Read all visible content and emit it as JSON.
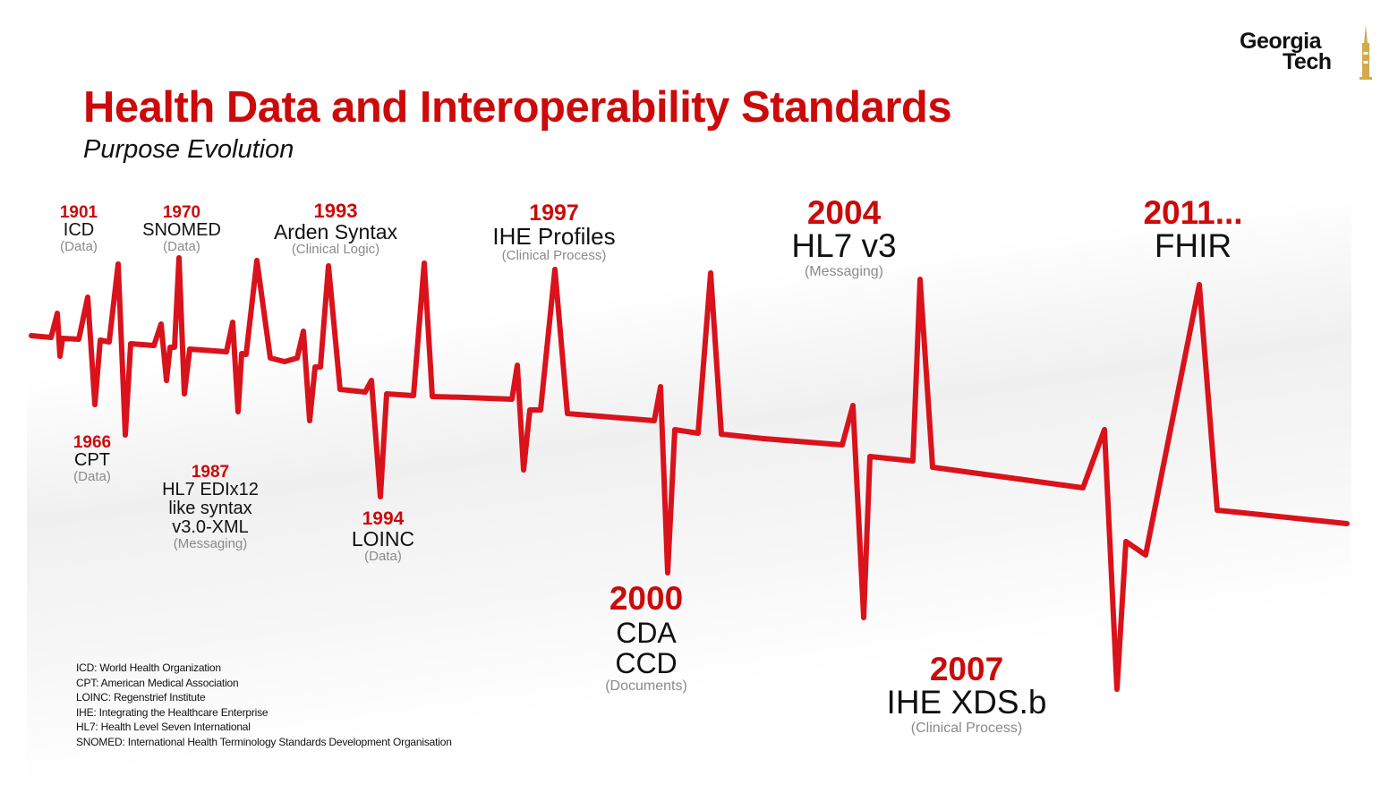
{
  "header": {
    "title": "Health Data and Interoperability Standards",
    "subtitle": "Purpose Evolution"
  },
  "logo": {
    "line1": "Georgia",
    "line2": "Tech"
  },
  "events": [
    {
      "year": "1901",
      "name": "ICD",
      "type": "(Data)"
    },
    {
      "year": "1966",
      "name": "CPT",
      "type": "(Data)"
    },
    {
      "year": "1970",
      "name": "SNOMED",
      "type": "(Data)"
    },
    {
      "year": "1987",
      "name_lines": [
        "HL7 EDIx12",
        "like syntax",
        "v3.0-XML"
      ],
      "type": "(Messaging)"
    },
    {
      "year": "1993",
      "name": "Arden Syntax",
      "type": "(Clinical Logic)"
    },
    {
      "year": "1994",
      "name": "LOINC",
      "type": "(Data)"
    },
    {
      "year": "1997",
      "name": "IHE Profiles",
      "type": "(Clinical Process)"
    },
    {
      "year": "2000",
      "name_lines": [
        "CDA",
        "CCD"
      ],
      "type": "(Documents)"
    },
    {
      "year": "2004",
      "name": "HL7 v3",
      "type": "(Messaging)"
    },
    {
      "year": "2007",
      "name": "IHE XDS.b",
      "type": "(Clinical Process)"
    },
    {
      "year": "2011...",
      "name": "FHIR"
    }
  ],
  "legend": [
    "ICD: World Health Organization",
    "CPT: American Medical Association",
    "LOINC: Regenstrief Institute",
    "IHE: Integrating the Healthcare Enterprise",
    "HL7: Health Level Seven International",
    "SNOMED: International Health Terminology Standards Development Organisation"
  ],
  "colors": {
    "accent": "#cc0a0a",
    "text": "#111111",
    "muted": "#8a8a8a"
  }
}
